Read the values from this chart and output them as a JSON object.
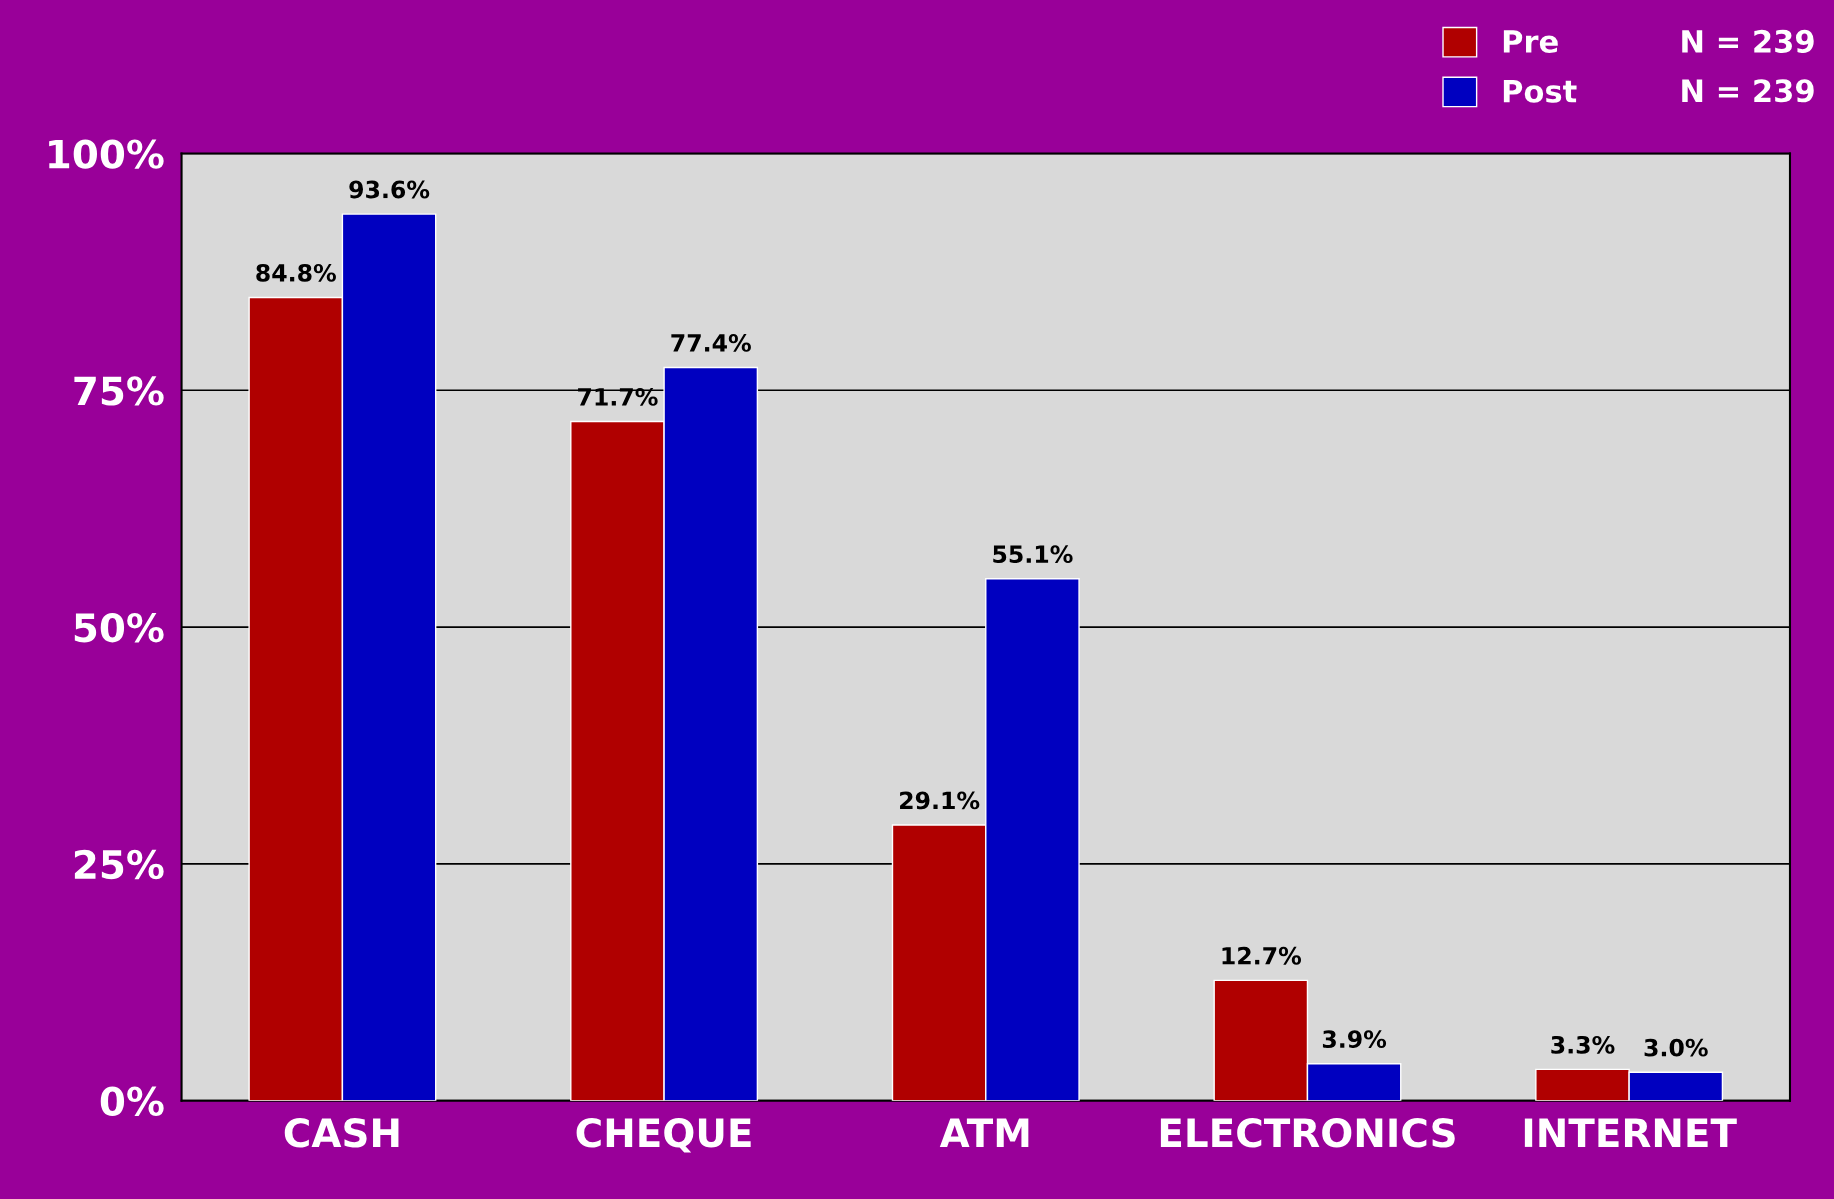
{
  "chart_data": {
    "type": "bar",
    "categories": [
      "CASH",
      "CHEQUE",
      "ATM",
      "ELECTRONICS",
      "INTERNET"
    ],
    "series": [
      {
        "name": "Pre",
        "color": "#b00000",
        "values": [
          84.8,
          71.7,
          29.1,
          12.7,
          3.3
        ],
        "value_labels": [
          "84.8%",
          "71.7%",
          "29.1%",
          "12.7%",
          "3.3%"
        ]
      },
      {
        "name": "Post",
        "color": "#0000c0",
        "values": [
          93.6,
          77.4,
          55.1,
          3.9,
          3.0
        ],
        "value_labels": [
          "93.6%",
          "77.4%",
          "55.1%",
          "3.9%",
          "3.0%"
        ]
      }
    ],
    "ylim": [
      0,
      100
    ],
    "yticks": [
      {
        "value": 0,
        "label": "0%"
      },
      {
        "value": 25,
        "label": "25%"
      },
      {
        "value": 50,
        "label": "50%"
      },
      {
        "value": 75,
        "label": "75%"
      },
      {
        "value": 100,
        "label": "100%"
      }
    ],
    "grid": "y",
    "legend": "top right",
    "annotations": [
      "N = 239",
      "N = 239"
    ]
  }
}
